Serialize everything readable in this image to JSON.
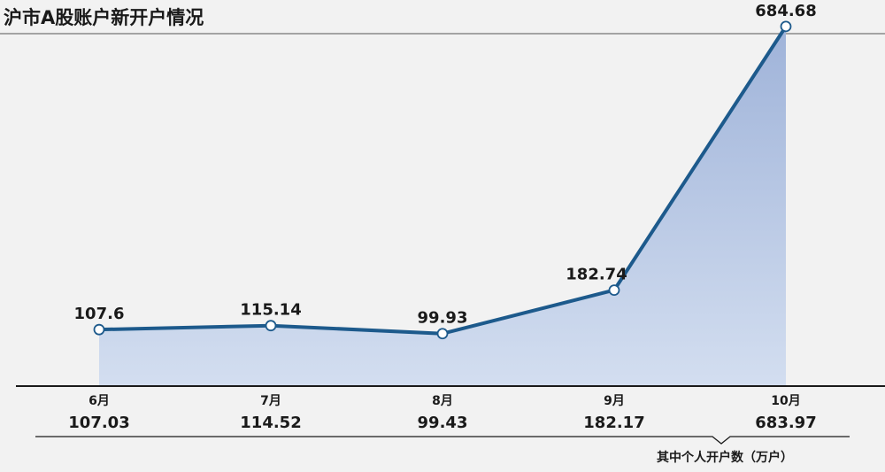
{
  "chart_data": {
    "type": "area",
    "title": "沪市A股账户新开户情况",
    "categories": [
      "6月",
      "7月",
      "8月",
      "9月",
      "10月"
    ],
    "series": [
      {
        "name": "",
        "values": [
          107.6,
          115.14,
          99.93,
          182.74,
          684.68
        ]
      }
    ],
    "point_labels": [
      "107.6",
      "115.14",
      "99.93",
      "182.74",
      "684.68"
    ],
    "secondary_values": [
      107.03,
      114.52,
      99.43,
      182.17,
      683.97
    ],
    "secondary_labels": [
      "107.03",
      "114.52",
      "99.43",
      "182.17",
      "683.97"
    ],
    "secondary_caption": "其中个人开户数（万户）",
    "ylim": [
      0,
      735
    ],
    "grid": false,
    "colors": {
      "line": "#1d5a8c",
      "fill_top": "#9fb3d9",
      "fill_bottom": "#d3def0",
      "background": "#f2f2f2",
      "marker_fill": "#ffffff"
    }
  }
}
